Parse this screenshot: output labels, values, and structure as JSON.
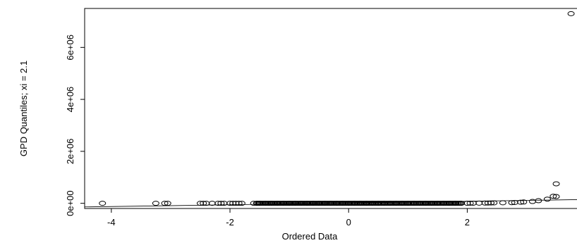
{
  "chart_data": {
    "type": "scatter",
    "xlabel": "Ordered Data",
    "ylabel": "GPD Quantiles; xi = 2.1",
    "x_ticks": [
      -4,
      -2,
      0,
      2
    ],
    "x_tick_labels": [
      "-4",
      "-2",
      "0",
      "2"
    ],
    "y_ticks": [
      0,
      2000000,
      4000000,
      6000000
    ],
    "y_tick_labels": [
      "0e+00",
      "2e+06",
      "4e+06",
      "6e+06"
    ],
    "xlim": [
      -4.45,
      3.85
    ],
    "ylim": [
      -200000,
      7500000
    ],
    "reference_line": {
      "x": [
        -4.45,
        3.85
      ],
      "y": [
        -140000,
        140000
      ]
    },
    "points": {
      "x": [
        -4.15,
        -3.25,
        -3.1,
        -3.05,
        -2.5,
        -2.45,
        -2.4,
        -2.3,
        -2.2,
        -2.15,
        -2.1,
        -2.0,
        -1.95,
        -1.9,
        -1.85,
        -1.8,
        -1.6,
        -1.55,
        -1.5,
        -1.4,
        -1.3,
        -1.2,
        -1.1,
        -1.0,
        -0.9,
        -0.8,
        -0.7,
        -0.6,
        -0.5,
        -0.4,
        -0.3,
        -0.2,
        -0.1,
        0.0,
        0.1,
        0.2,
        0.3,
        0.4,
        0.5,
        0.6,
        0.7,
        0.8,
        0.9,
        1.0,
        1.1,
        1.2,
        1.3,
        1.4,
        1.5,
        1.6,
        1.7,
        1.8,
        1.9,
        2.0,
        2.05,
        2.1,
        2.2,
        2.3,
        2.35,
        2.4,
        2.45,
        2.6,
        2.75,
        2.8,
        2.9,
        2.95,
        3.1,
        3.2,
        3.35,
        3.45,
        3.5,
        3.5,
        3.75
      ],
      "y": [
        0,
        0,
        0,
        0,
        0,
        0,
        0,
        0,
        0,
        0,
        0,
        0,
        0,
        0,
        0,
        0,
        0,
        0,
        0,
        0,
        0,
        0,
        0,
        0,
        0,
        0,
        0,
        0,
        0,
        0,
        0,
        0,
        0,
        0,
        0,
        0,
        0,
        0,
        0,
        0,
        0,
        0,
        0,
        0,
        0,
        0,
        0,
        0,
        0,
        0,
        0,
        0,
        0,
        2000,
        3000,
        5000,
        7000,
        9000,
        11000,
        14000,
        17000,
        20000,
        25000,
        30000,
        40000,
        50000,
        70000,
        100000,
        160000,
        270000,
        750000,
        260000,
        7300000
      ]
    }
  }
}
